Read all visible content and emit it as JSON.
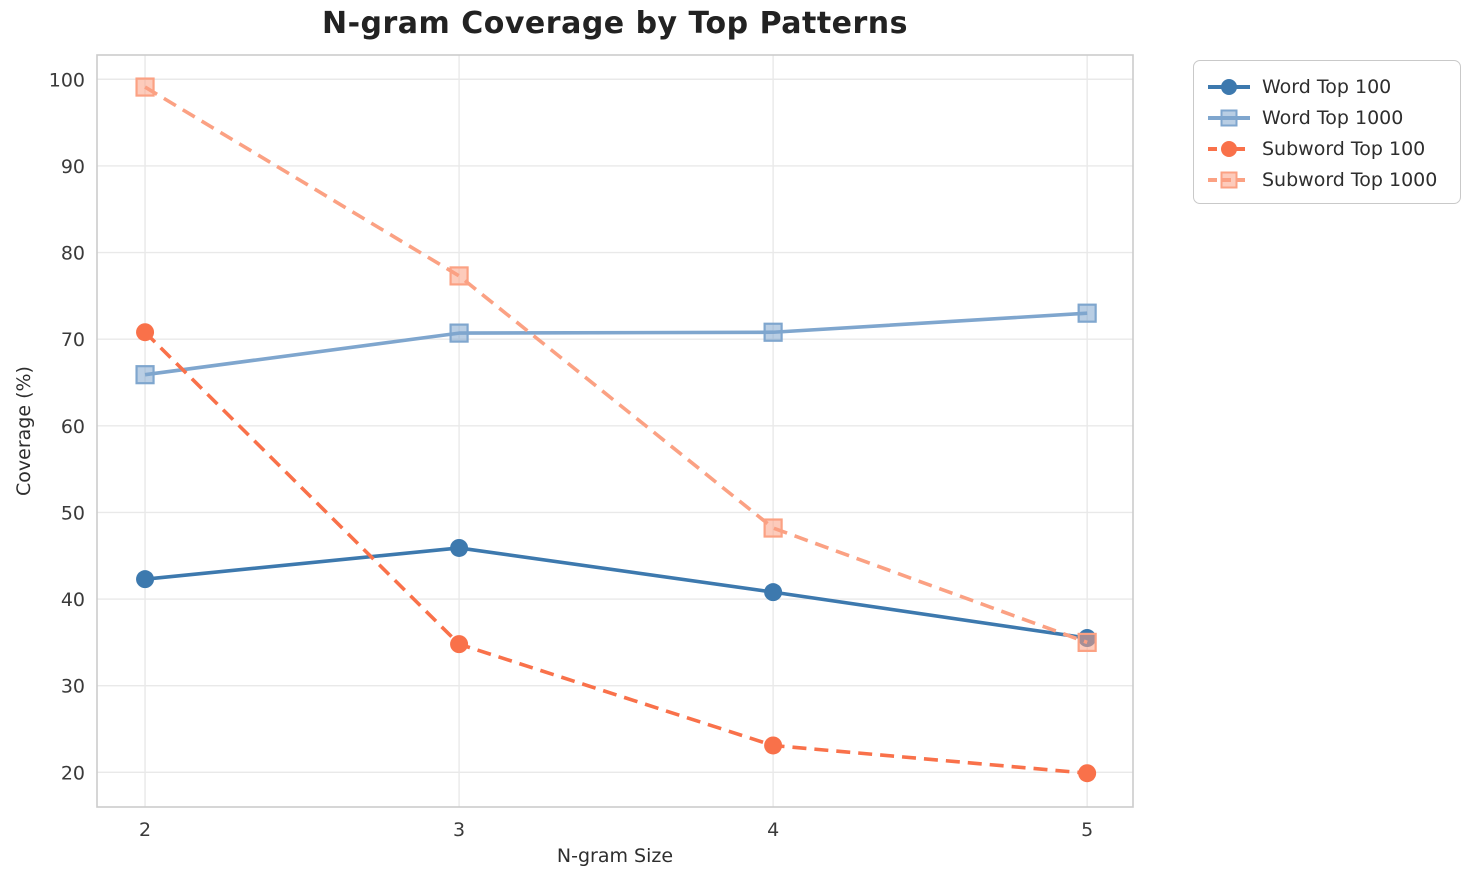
{
  "figure": {
    "title": "N-gram Coverage by Top Patterns",
    "xlabel": "N-gram Size",
    "ylabel": "Coverage (%)"
  },
  "chart_data": {
    "type": "line",
    "title": "N-gram Coverage by Top Patterns",
    "xlabel": "N-gram Size",
    "ylabel": "Coverage (%)",
    "x": [
      2,
      3,
      4,
      5
    ],
    "xticks": [
      2,
      3,
      4,
      5
    ],
    "yticks": [
      20,
      30,
      40,
      50,
      60,
      70,
      80,
      90,
      100
    ],
    "xlim": [
      1.847,
      5.146
    ],
    "ylim": [
      16.0,
      102.8
    ],
    "grid": true,
    "legend_position": "outside-top-right",
    "series": [
      {
        "name": "Word Top 100",
        "values": [
          42.3,
          45.9,
          40.8,
          35.5
        ],
        "color": "#3D79AE",
        "marker": "circle",
        "line_style": "solid"
      },
      {
        "name": "Word Top 1000",
        "values": [
          65.9,
          70.7,
          70.8,
          73.0
        ],
        "color": "#7FA6CE",
        "marker": "square",
        "line_style": "solid"
      },
      {
        "name": "Subword Top 100",
        "values": [
          70.8,
          34.8,
          23.1,
          19.9
        ],
        "color": "#F9714A",
        "marker": "circle",
        "line_style": "dashed"
      },
      {
        "name": "Subword Top 1000",
        "values": [
          99.1,
          77.3,
          48.2,
          35.0
        ],
        "color": "#FBA183",
        "marker": "square",
        "line_style": "dashed"
      }
    ],
    "style": {
      "grid_color": "#e9e9e9",
      "spine_color": "#cccccc",
      "tick_label_color": "#3a3a3a",
      "background": "#ffffff"
    }
  }
}
